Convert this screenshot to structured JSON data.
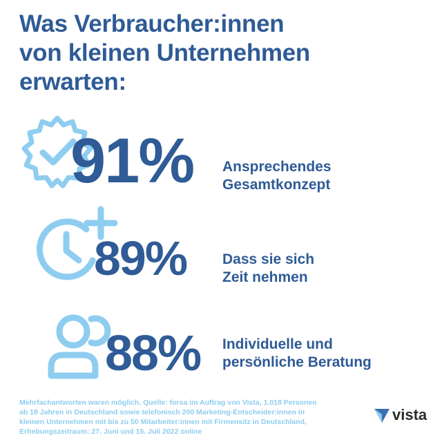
{
  "title": "Was Verbraucher:innen\nvon kleinen Unternehmen\nerwarten:",
  "stats": [
    {
      "value": "91%",
      "label": "Ansprechendes\nGesamtkonzept",
      "icon": "badge-check-icon"
    },
    {
      "value": "89%",
      "label": "Dass sie sich\nZeit nehmen",
      "icon": "clock-plus-icon"
    },
    {
      "value": "88%",
      "label": "Individuelle und\npersönliche Beratung",
      "icon": "users-icon"
    }
  ],
  "footnote": "Mehrfachantworten waren möglich. Quelle: forsa im Auftrag von Vista, 1.018 Personen\nab 18 Jahren in Deutschland sowie telefonisch 200 Marketing-Entscheider:innen in\nkleinen Unternehmen mit bis zu 50 Mitarbeiter:innen mit Firmensitz in Deutschland,\nErhebungszeitraum: 27. Juni und 15. Juli 2022 online",
  "brand": {
    "name": "vista",
    "primary_color": "#2f5b96",
    "accent_color": "#8ecdf0"
  }
}
